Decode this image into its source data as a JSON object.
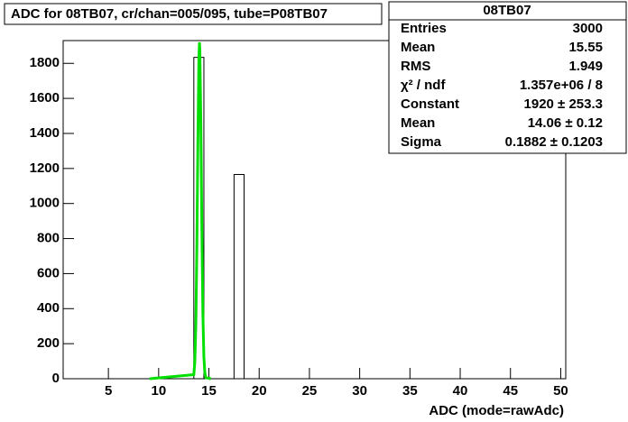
{
  "chart_data": {
    "type": "histogram",
    "title": "ADC for 08TB07,  cr/chan=005/095,  tube=P08TB07",
    "x_label": "ADC (mode=rawAdc)",
    "bins": [
      0.5,
      1.5,
      2.5,
      3.5,
      4.5,
      5.5,
      6.5,
      7.5,
      8.5,
      9.5,
      10.5,
      11.5,
      12.5,
      13.5,
      14.5,
      15.5,
      16.5,
      17.5,
      18.5,
      19.5,
      20.5,
      21.5,
      22.5,
      23.5,
      24.5,
      25.5,
      26.5,
      27.5,
      28.5,
      29.5,
      30.5,
      31.5,
      32.5,
      33.5,
      34.5,
      35.5,
      36.5,
      37.5,
      38.5,
      39.5,
      40.5,
      41.5,
      42.5,
      43.5,
      44.5,
      45.5,
      46.5,
      47.5,
      48.5,
      49.5,
      50.5
    ],
    "counts": [
      0,
      0,
      0,
      0,
      0,
      0,
      0,
      0,
      0,
      0,
      0,
      0,
      0,
      1834,
      0,
      0,
      0,
      1166,
      0,
      0,
      0,
      0,
      0,
      0,
      0,
      0,
      0,
      0,
      0,
      0,
      0,
      0,
      0,
      0,
      0,
      0,
      0,
      0,
      0,
      0,
      0,
      0,
      0,
      0,
      0,
      0,
      0,
      0,
      0,
      0
    ],
    "color": "#000000",
    "fit": {
      "type": "line",
      "color": "#00e000",
      "x": [
        9.1,
        13.5,
        13.6,
        13.7,
        13.8,
        13.9,
        14.0,
        14.06,
        14.1,
        14.2,
        14.3,
        14.4,
        14.5,
        14.6,
        14.7,
        15.2
      ],
      "values": [
        0,
        23,
        97,
        308,
        739,
        1338,
        1825,
        1920,
        1877,
        1455,
        852,
        375,
        125,
        31,
        6,
        0
      ]
    },
    "xlim": [
      0.5,
      50.5
    ],
    "ylim": [
      0,
      1930
    ],
    "xticks": [
      5,
      10,
      15,
      20,
      25,
      30,
      35,
      40,
      45,
      50
    ],
    "yticks": [
      0,
      200,
      400,
      600,
      800,
      1000,
      1200,
      1400,
      1600,
      1800
    ],
    "stats": {
      "title": "08TB07",
      "rows": [
        {
          "label": "Entries",
          "value": "3000"
        },
        {
          "label": "Mean",
          "value": "15.55"
        },
        {
          "label": "RMS",
          "value": "1.949"
        },
        {
          "label": "χ² / ndf",
          "value": "1.357e+06 / 8"
        },
        {
          "label": "Constant",
          "value": "1920 ± 253.3"
        },
        {
          "label": "Mean",
          "value": "14.06 ± 0.12"
        },
        {
          "label": "Sigma",
          "value": "0.1882 ± 0.1203"
        }
      ]
    }
  }
}
